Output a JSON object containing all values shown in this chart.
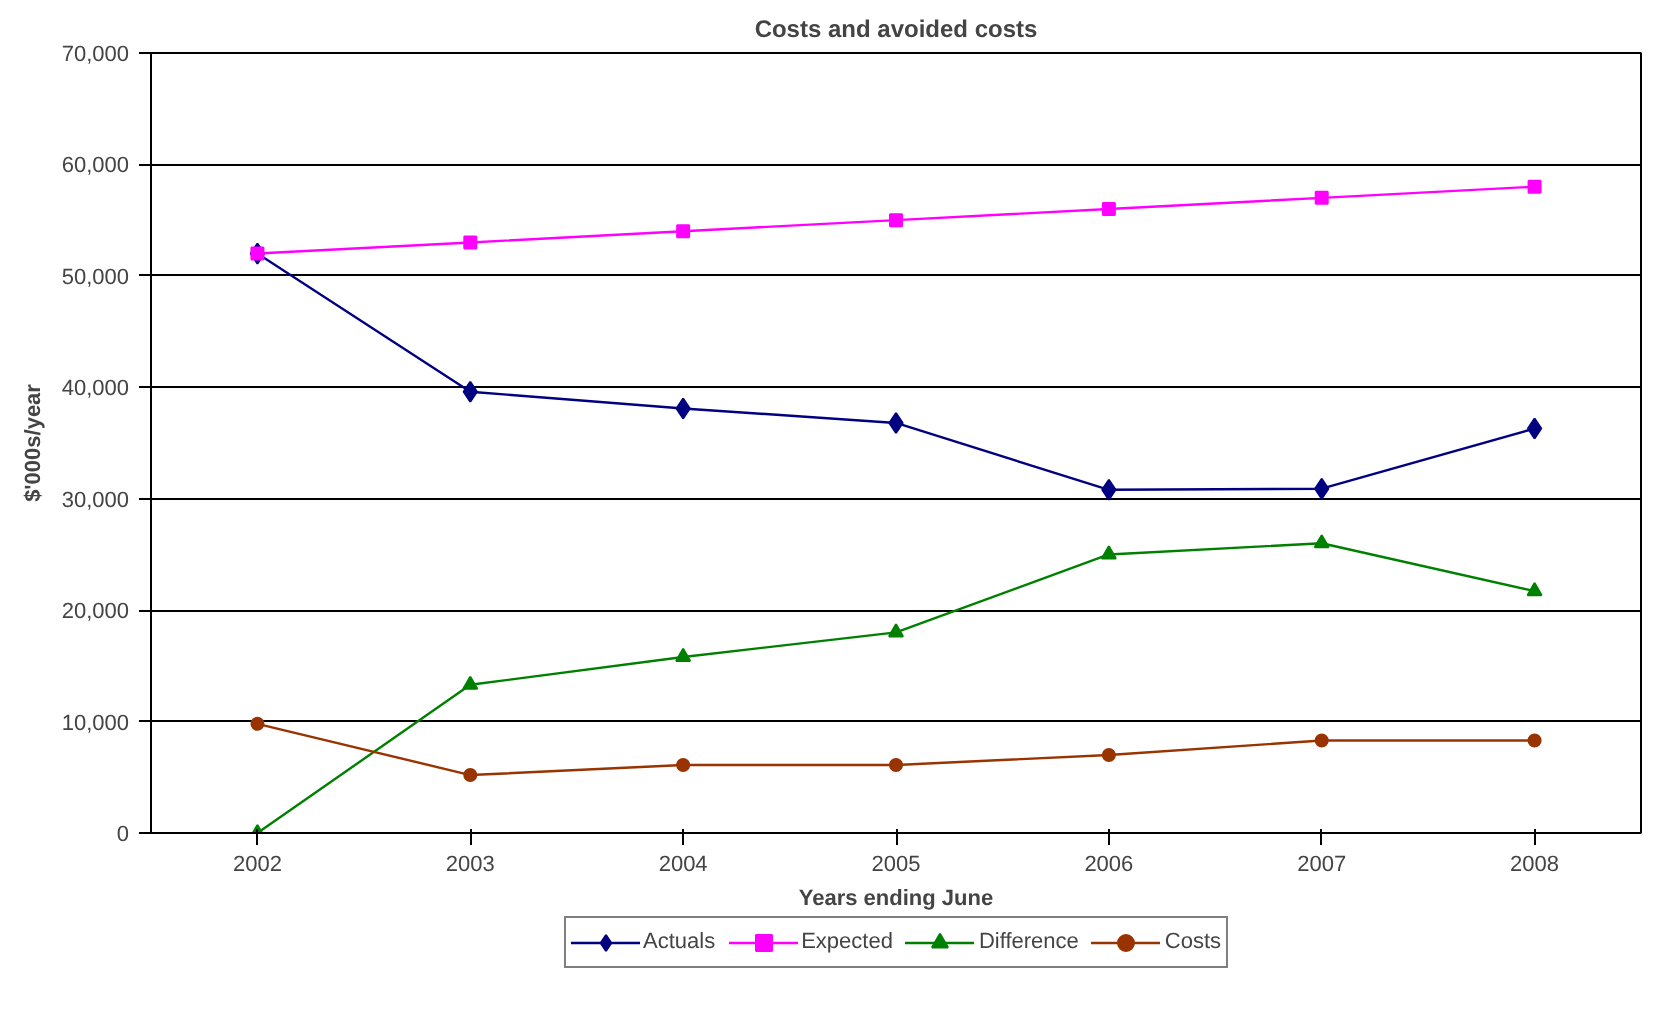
{
  "chart_data": {
    "type": "line",
    "title": "Costs and avoided costs",
    "xlabel": "Years ending June",
    "ylabel": "$'000s/year",
    "categories": [
      "2002",
      "2003",
      "2004",
      "2005",
      "2006",
      "2007",
      "2008"
    ],
    "series": [
      {
        "name": "Actuals",
        "color": "#000080",
        "marker": "diamond",
        "values": [
          52000,
          39600,
          38100,
          36800,
          30800,
          30900,
          36300
        ]
      },
      {
        "name": "Expected",
        "color": "#ff00ff",
        "marker": "square",
        "values": [
          52000,
          53000,
          54000,
          55000,
          56000,
          57000,
          58000
        ]
      },
      {
        "name": "Difference",
        "color": "#008000",
        "marker": "triangle",
        "values": [
          0,
          13300,
          15800,
          18000,
          25000,
          26000,
          21700
        ]
      },
      {
        "name": "Costs",
        "color": "#993300",
        "marker": "circle",
        "values": [
          9800,
          5200,
          6100,
          6100,
          7000,
          8300,
          8300
        ]
      }
    ],
    "ylim": [
      0,
      70000
    ],
    "yticks": [
      {
        "value": 0,
        "label": "0"
      },
      {
        "value": 10000,
        "label": "10,000"
      },
      {
        "value": 20000,
        "label": "20,000"
      },
      {
        "value": 30000,
        "label": "30,000"
      },
      {
        "value": 40000,
        "label": "40,000"
      },
      {
        "value": 50000,
        "label": "50,000"
      },
      {
        "value": 60000,
        "label": "60,000"
      },
      {
        "value": 70000,
        "label": "70,000"
      }
    ],
    "grid": "y",
    "legend": "bottom",
    "line_style": "solid"
  }
}
